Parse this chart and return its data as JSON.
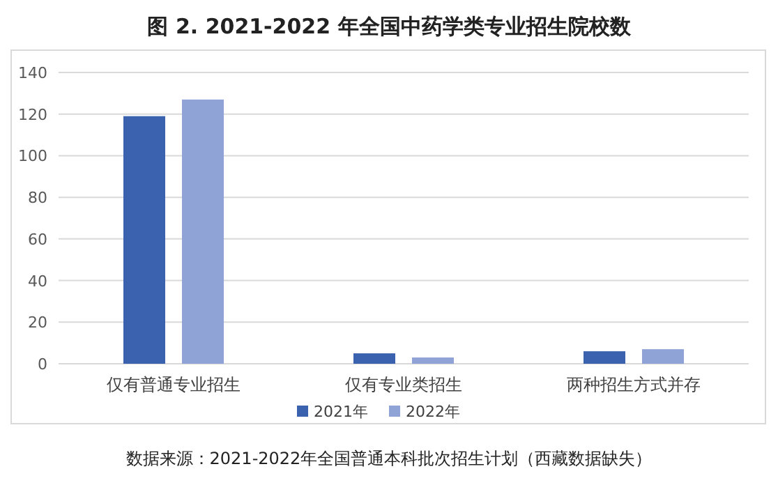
{
  "chart_data": {
    "type": "bar",
    "title": "图 2. 2021-2022 年全国中药学类专业招生院校数",
    "categories": [
      "仅有普通专业招生",
      "仅有专业类招生",
      "两种招生方式并存"
    ],
    "series": [
      {
        "name": "2021年",
        "color": "#3a62ae",
        "values": [
          119,
          5,
          6
        ]
      },
      {
        "name": "2022年",
        "color": "#8fa3d6",
        "values": [
          127,
          3,
          7
        ]
      }
    ],
    "ylim": [
      0,
      140
    ],
    "yticks": [
      0,
      20,
      40,
      60,
      80,
      100,
      120,
      140
    ],
    "grid": "y",
    "legend": "bottom",
    "annotations": [
      "数据来源：2021-2022年全国普通本科批次招生计划（西藏数据缺失）"
    ]
  }
}
